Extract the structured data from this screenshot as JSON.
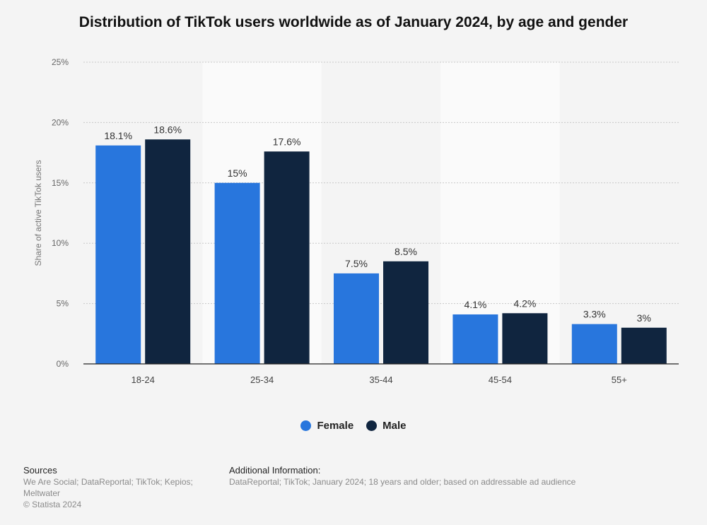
{
  "chart_data": {
    "type": "bar",
    "title": "Distribution of TikTok users worldwide as of January 2024, by age and gender",
    "xlabel": "",
    "ylabel": "Share of active TikTok users",
    "categories": [
      "18-24",
      "25-34",
      "35-44",
      "45-54",
      "55+"
    ],
    "series": [
      {
        "name": "Female",
        "color": "#2876dd",
        "values": [
          18.1,
          15,
          7.5,
          4.1,
          3.3
        ],
        "labels": [
          "18.1%",
          "15%",
          "7.5%",
          "4.1%",
          "3.3%"
        ]
      },
      {
        "name": "Male",
        "color": "#10253f",
        "values": [
          18.6,
          17.6,
          8.5,
          4.2,
          3
        ],
        "labels": [
          "18.6%",
          "17.6%",
          "8.5%",
          "4.2%",
          "3%"
        ]
      }
    ],
    "ylim": [
      0,
      25
    ],
    "yticks": [
      0,
      5,
      10,
      15,
      20,
      25
    ],
    "ytick_labels": [
      "0%",
      "5%",
      "10%",
      "15%",
      "20%",
      "25%"
    ],
    "grid": true,
    "legend": "bottom-center"
  },
  "footer": {
    "sources_heading": "Sources",
    "sources_lines": [
      "We Are Social; DataReportal; TikTok; Kepios;",
      "Meltwater",
      "© Statista 2024"
    ],
    "additional_heading": "Additional Information:",
    "additional_text": "DataReportal; TikTok; January 2024; 18 years and older; based on addressable ad audience"
  }
}
